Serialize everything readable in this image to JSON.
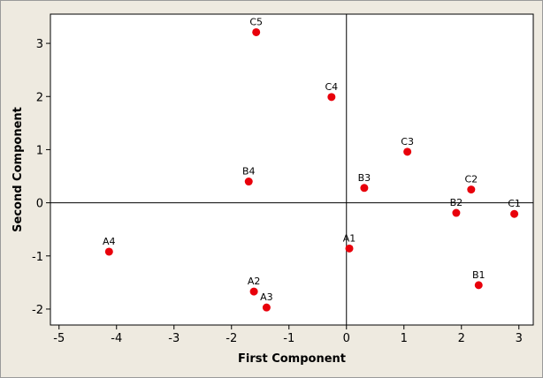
{
  "chart_data": {
    "type": "scatter",
    "title": "",
    "xlabel": "First Component",
    "ylabel": "Second Component",
    "xlim": [
      -5.15,
      3.25
    ],
    "ylim": [
      -2.3,
      3.55
    ],
    "xticks": [
      -5,
      -4,
      -3,
      -2,
      -1,
      0,
      1,
      2,
      3
    ],
    "yticks": [
      -2,
      -1,
      0,
      1,
      2,
      3
    ],
    "xtick_labels": [
      "-5",
      "-4",
      "-3",
      "-2",
      "-1",
      "0",
      "1",
      "2",
      "3"
    ],
    "ytick_labels": [
      "-2",
      "-1",
      "0",
      "1",
      "2",
      "3"
    ],
    "reference_lines": {
      "x": 0,
      "y": 0
    },
    "grid": false,
    "legend": "none",
    "marker_color": "#e8000b",
    "points": [
      {
        "label": "C5",
        "x": -1.57,
        "y": 3.21
      },
      {
        "label": "C4",
        "x": -0.26,
        "y": 1.99
      },
      {
        "label": "C3",
        "x": 1.06,
        "y": 0.96
      },
      {
        "label": "B4",
        "x": -1.7,
        "y": 0.4
      },
      {
        "label": "B3",
        "x": 0.31,
        "y": 0.28
      },
      {
        "label": "C2",
        "x": 2.17,
        "y": 0.25
      },
      {
        "label": "B2",
        "x": 1.91,
        "y": -0.19
      },
      {
        "label": "C1",
        "x": 2.92,
        "y": -0.21
      },
      {
        "label": "A4",
        "x": -4.13,
        "y": -0.92
      },
      {
        "label": "A1",
        "x": 0.05,
        "y": -0.86
      },
      {
        "label": "B1",
        "x": 2.3,
        "y": -1.55
      },
      {
        "label": "A2",
        "x": -1.61,
        "y": -1.67
      },
      {
        "label": "A3",
        "x": -1.39,
        "y": -1.97
      }
    ]
  }
}
